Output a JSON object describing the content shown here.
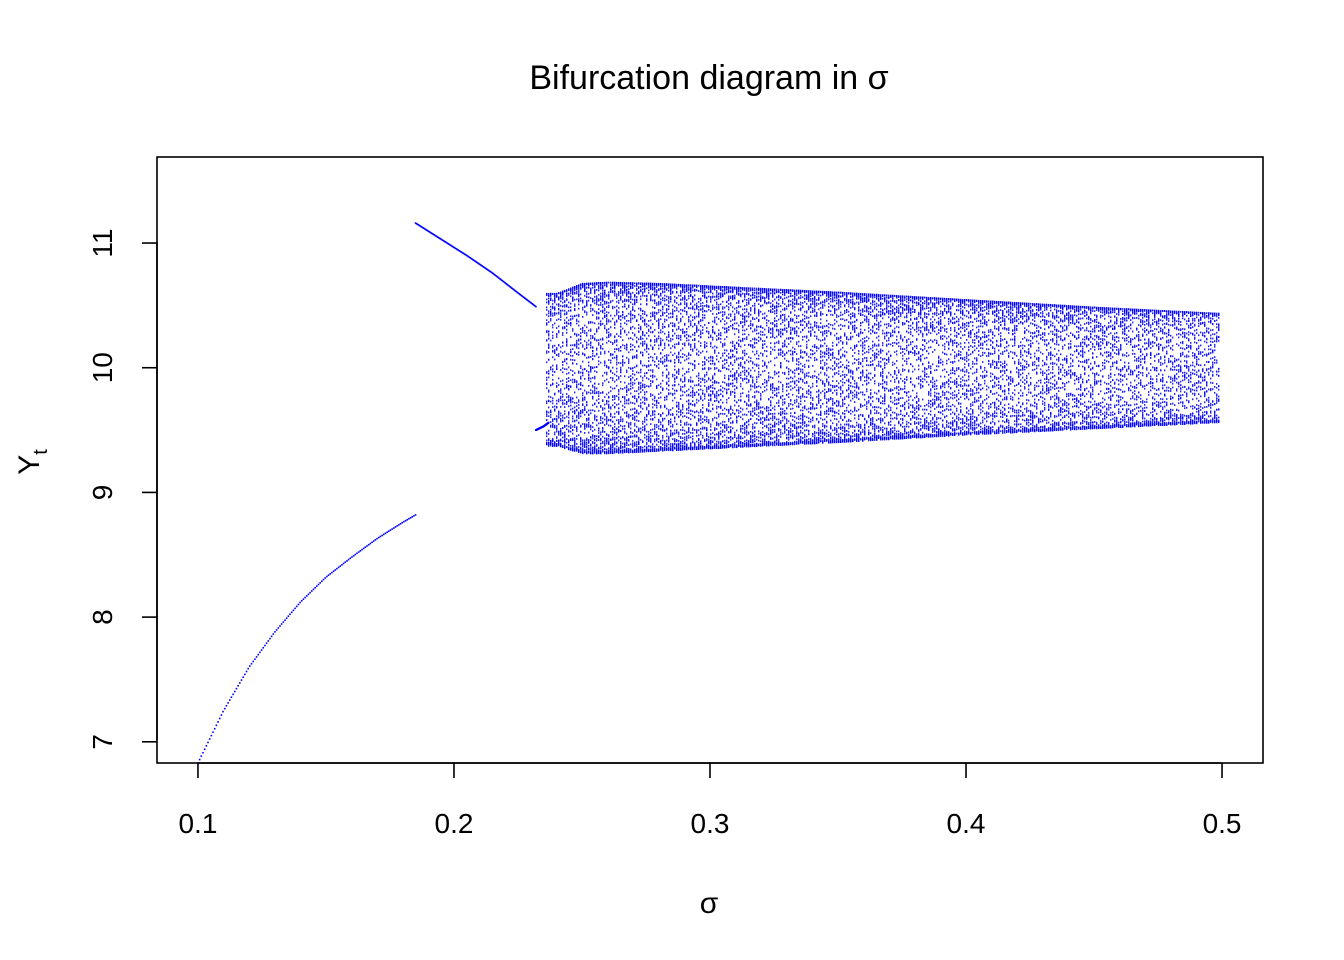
{
  "chart_data": {
    "type": "scatter",
    "title": "Bifurcation diagram in σ",
    "xlabel": "σ",
    "ylabel": "Y",
    "ylabel_subscript": "t",
    "xlim": [
      0.084,
      0.516
    ],
    "ylim": [
      6.83,
      11.69
    ],
    "x_ticks": [
      0.1,
      0.2,
      0.3,
      0.4,
      0.5
    ],
    "x_tick_labels": [
      "0.1",
      "0.2",
      "0.3",
      "0.4",
      "0.5"
    ],
    "y_ticks": [
      7,
      8,
      9,
      10,
      11
    ],
    "y_tick_labels": [
      "7",
      "8",
      "9",
      "10",
      "11"
    ],
    "grid": false,
    "point_color": "#0000ff",
    "series": [
      {
        "regime": "fixed-point",
        "x": [
          0.1,
          0.11,
          0.12,
          0.13,
          0.14,
          0.15,
          0.16,
          0.17,
          0.18,
          0.185
        ],
        "y": [
          6.83,
          7.25,
          7.6,
          7.88,
          8.12,
          8.32,
          8.48,
          8.63,
          8.76,
          8.82
        ]
      },
      {
        "regime": "period-2 upper",
        "x": [
          0.185,
          0.195,
          0.205,
          0.215,
          0.225,
          0.232
        ],
        "y": [
          11.16,
          11.03,
          10.9,
          10.76,
          10.6,
          10.49
        ]
      },
      {
        "regime": "period-2 lower",
        "x": [
          0.232,
          0.235,
          0.237
        ],
        "y": [
          9.5,
          9.53,
          9.56
        ]
      },
      {
        "regime": "quasi-periodic band",
        "x_range": [
          0.236,
          0.499
        ],
        "upper_envelope": {
          "x": [
            0.24,
            0.25,
            0.26,
            0.28,
            0.3,
            0.35,
            0.4,
            0.45,
            0.499
          ],
          "y": [
            10.6,
            10.68,
            10.69,
            10.68,
            10.66,
            10.61,
            10.55,
            10.49,
            10.44
          ]
        },
        "lower_envelope": {
          "x": [
            0.24,
            0.25,
            0.26,
            0.28,
            0.3,
            0.35,
            0.4,
            0.45,
            0.499
          ],
          "y": [
            9.38,
            9.32,
            9.32,
            9.34,
            9.36,
            9.41,
            9.47,
            9.52,
            9.57
          ]
        }
      }
    ]
  }
}
